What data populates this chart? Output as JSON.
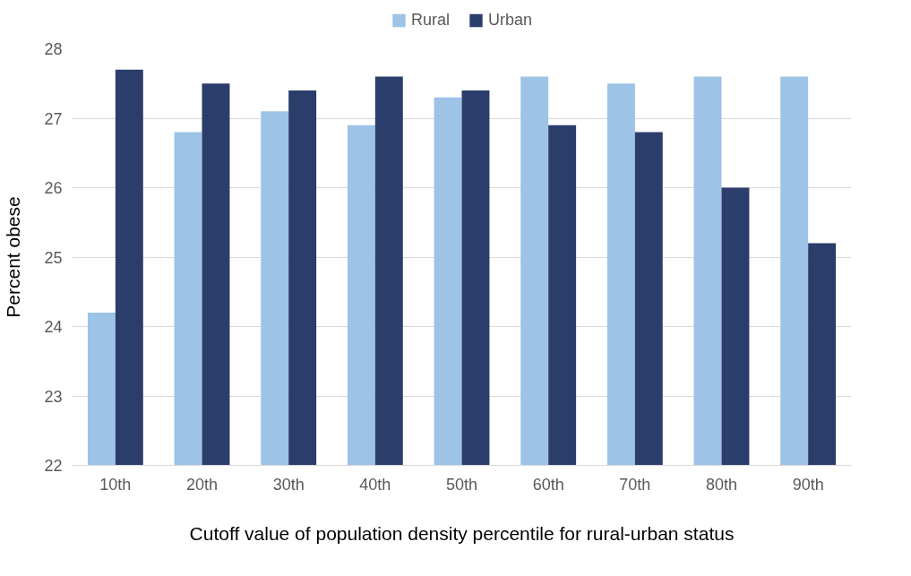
{
  "chart_data": {
    "type": "bar",
    "xlabel": "Cutoff value of population density percentile for rural-urban status",
    "ylabel": "Percent obese",
    "categories": [
      "10th",
      "20th",
      "30th",
      "40th",
      "50th",
      "60th",
      "70th",
      "80th",
      "90th"
    ],
    "series": [
      {
        "name": "Rural",
        "color": "#9dc3e6",
        "values": [
          24.2,
          26.8,
          27.1,
          26.9,
          27.3,
          27.6,
          27.5,
          27.6,
          27.6
        ]
      },
      {
        "name": "Urban",
        "color": "#2b3d6b",
        "values": [
          27.7,
          27.5,
          27.4,
          27.6,
          27.4,
          26.9,
          26.8,
          26.0,
          25.2
        ]
      }
    ],
    "ylim": [
      22,
      28
    ],
    "yticks": [
      22,
      23,
      24,
      25,
      26,
      27,
      28
    ],
    "grid": "y",
    "legend": "top"
  }
}
